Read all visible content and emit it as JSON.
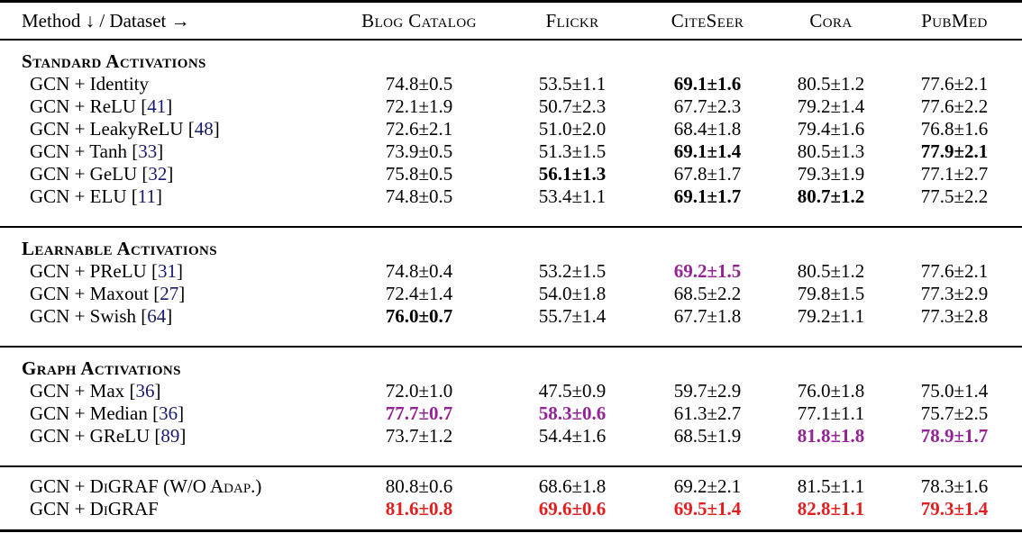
{
  "format": {
    "cite_prefix": " [",
    "cite_suffix": "]"
  },
  "colors": {
    "text": "#000000",
    "cite": "#191970",
    "highlight_purple": "#942396",
    "highlight_red": "#e41e1e"
  },
  "header": {
    "method_label": "Method ↓ / Dataset →",
    "datasets": [
      "Blog Catalog",
      "Flickr",
      "CiteSeer",
      "Cora",
      "PubMed"
    ]
  },
  "sections": [
    {
      "title": "Standard Activations",
      "rows": [
        {
          "method": "GCN + Identity",
          "cite": null,
          "smallcaps": false,
          "values": [
            {
              "text": "74.8±0.5",
              "style": "normal"
            },
            {
              "text": "53.5±1.1",
              "style": "normal"
            },
            {
              "text": "69.1±1.6",
              "style": "bold"
            },
            {
              "text": "80.5±1.2",
              "style": "normal"
            },
            {
              "text": "77.6±2.1",
              "style": "normal"
            }
          ]
        },
        {
          "method": "GCN + ReLU",
          "cite": "41",
          "smallcaps": false,
          "values": [
            {
              "text": "72.1±1.9",
              "style": "normal"
            },
            {
              "text": "50.7±2.3",
              "style": "normal"
            },
            {
              "text": "67.7±2.3",
              "style": "normal"
            },
            {
              "text": "79.2±1.4",
              "style": "normal"
            },
            {
              "text": "77.6±2.2",
              "style": "normal"
            }
          ]
        },
        {
          "method": "GCN + LeakyReLU",
          "cite": "48",
          "smallcaps": false,
          "values": [
            {
              "text": "72.6±2.1",
              "style": "normal"
            },
            {
              "text": "51.0±2.0",
              "style": "normal"
            },
            {
              "text": "68.4±1.8",
              "style": "normal"
            },
            {
              "text": "79.4±1.6",
              "style": "normal"
            },
            {
              "text": "76.8±1.6",
              "style": "normal"
            }
          ]
        },
        {
          "method": "GCN + Tanh",
          "cite": "33",
          "smallcaps": false,
          "values": [
            {
              "text": "73.9±0.5",
              "style": "normal"
            },
            {
              "text": "51.3±1.5",
              "style": "normal"
            },
            {
              "text": "69.1±1.4",
              "style": "bold"
            },
            {
              "text": "80.5±1.3",
              "style": "normal"
            },
            {
              "text": "77.9±2.1",
              "style": "bold"
            }
          ]
        },
        {
          "method": "GCN + GeLU",
          "cite": "32",
          "smallcaps": false,
          "values": [
            {
              "text": "75.8±0.5",
              "style": "normal"
            },
            {
              "text": "56.1±1.3",
              "style": "bold"
            },
            {
              "text": "67.8±1.7",
              "style": "normal"
            },
            {
              "text": "79.3±1.9",
              "style": "normal"
            },
            {
              "text": "77.1±2.7",
              "style": "normal"
            }
          ]
        },
        {
          "method": "GCN + ELU",
          "cite": "11",
          "smallcaps": false,
          "values": [
            {
              "text": "74.8±0.5",
              "style": "normal"
            },
            {
              "text": "53.4±1.1",
              "style": "normal"
            },
            {
              "text": "69.1±1.7",
              "style": "bold"
            },
            {
              "text": "80.7±1.2",
              "style": "bold"
            },
            {
              "text": "77.5±2.2",
              "style": "normal"
            }
          ]
        }
      ]
    },
    {
      "title": "Learnable Activations",
      "rows": [
        {
          "method": "GCN + PReLU",
          "cite": "31",
          "smallcaps": false,
          "values": [
            {
              "text": "74.8±0.4",
              "style": "normal"
            },
            {
              "text": "53.2±1.5",
              "style": "normal"
            },
            {
              "text": "69.2±1.5",
              "style": "purple"
            },
            {
              "text": "80.5±1.2",
              "style": "normal"
            },
            {
              "text": "77.6±2.1",
              "style": "normal"
            }
          ]
        },
        {
          "method": "GCN + Maxout",
          "cite": "27",
          "smallcaps": false,
          "values": [
            {
              "text": "72.4±1.4",
              "style": "normal"
            },
            {
              "text": "54.0±1.8",
              "style": "normal"
            },
            {
              "text": "68.5±2.2",
              "style": "normal"
            },
            {
              "text": "79.8±1.5",
              "style": "normal"
            },
            {
              "text": "77.3±2.9",
              "style": "normal"
            }
          ]
        },
        {
          "method": "GCN + Swish",
          "cite": "64",
          "smallcaps": false,
          "values": [
            {
              "text": "76.0±0.7",
              "style": "bold"
            },
            {
              "text": "55.7±1.4",
              "style": "normal"
            },
            {
              "text": "67.7±1.8",
              "style": "normal"
            },
            {
              "text": "79.2±1.1",
              "style": "normal"
            },
            {
              "text": "77.3±2.8",
              "style": "normal"
            }
          ]
        }
      ]
    },
    {
      "title": "Graph Activations",
      "rows": [
        {
          "method": "GCN + Max",
          "cite": "36",
          "smallcaps": false,
          "values": [
            {
              "text": "72.0±1.0",
              "style": "normal"
            },
            {
              "text": "47.5±0.9",
              "style": "normal"
            },
            {
              "text": "59.7±2.9",
              "style": "normal"
            },
            {
              "text": "76.0±1.8",
              "style": "normal"
            },
            {
              "text": "75.0±1.4",
              "style": "normal"
            }
          ]
        },
        {
          "method": "GCN + Median",
          "cite": "36",
          "smallcaps": false,
          "values": [
            {
              "text": "77.7±0.7",
              "style": "purple"
            },
            {
              "text": "58.3±0.6",
              "style": "purple"
            },
            {
              "text": "61.3±2.7",
              "style": "normal"
            },
            {
              "text": "77.1±1.1",
              "style": "normal"
            },
            {
              "text": "75.7±2.5",
              "style": "normal"
            }
          ]
        },
        {
          "method": "GCN + GReLU",
          "cite": "89",
          "smallcaps": false,
          "values": [
            {
              "text": "73.7±1.2",
              "style": "normal"
            },
            {
              "text": "54.4±1.6",
              "style": "normal"
            },
            {
              "text": "68.5±1.9",
              "style": "normal"
            },
            {
              "text": "81.8±1.8",
              "style": "purple"
            },
            {
              "text": "78.9±1.7",
              "style": "purple"
            }
          ]
        }
      ]
    },
    {
      "title": null,
      "rows": [
        {
          "method": "GCN + DiGRAF (W/O Adap.)",
          "cite": null,
          "smallcaps": true,
          "values": [
            {
              "text": "80.8±0.6",
              "style": "normal"
            },
            {
              "text": "68.6±1.8",
              "style": "normal"
            },
            {
              "text": "69.2±2.1",
              "style": "normal"
            },
            {
              "text": "81.5±1.1",
              "style": "normal"
            },
            {
              "text": "78.3±1.6",
              "style": "normal"
            }
          ]
        },
        {
          "method": "GCN + DiGRAF",
          "cite": null,
          "smallcaps": true,
          "values": [
            {
              "text": "81.6±0.8",
              "style": "red"
            },
            {
              "text": "69.6±0.6",
              "style": "red"
            },
            {
              "text": "69.5±1.4",
              "style": "red"
            },
            {
              "text": "82.8±1.1",
              "style": "red"
            },
            {
              "text": "79.3±1.4",
              "style": "red"
            }
          ]
        }
      ]
    }
  ]
}
